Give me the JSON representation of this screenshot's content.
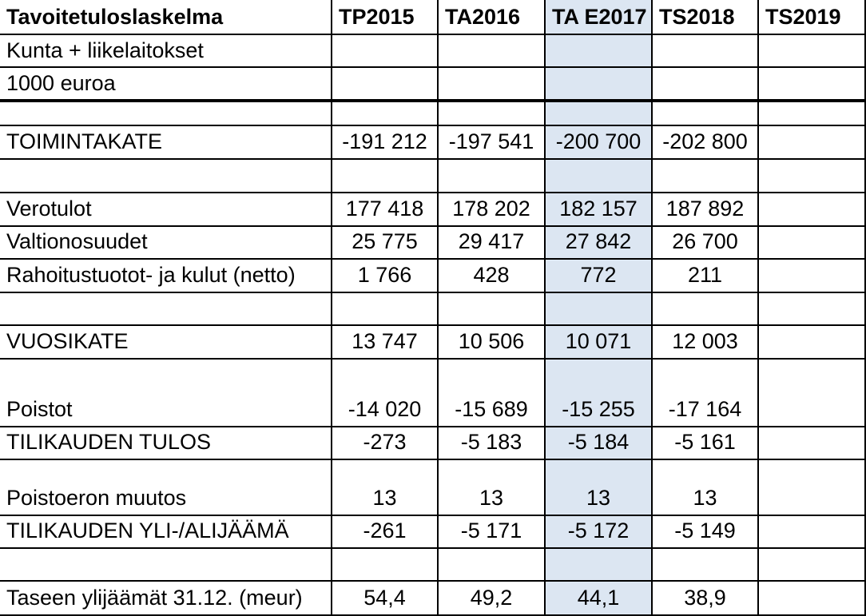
{
  "header": {
    "title": "Tavoitetuloslaskelma",
    "columns": [
      "TP2015",
      "TA2016",
      "TA E2017",
      "TS2018",
      "TS2019"
    ]
  },
  "subheader": {
    "line1": "Kunta + liikelaitokset",
    "line2": "1000 euroa"
  },
  "rows": [
    {
      "label": "",
      "values": [
        "",
        "",
        "",
        "",
        ""
      ]
    },
    {
      "label": "TOIMINTAKATE",
      "values": [
        "-191 212",
        "-197 541",
        "-200 700",
        "-202 800",
        ""
      ]
    },
    {
      "label": "",
      "values": [
        "",
        "",
        "",
        "",
        ""
      ]
    },
    {
      "label": "Verotulot",
      "values": [
        "177 418",
        "178 202",
        "182 157",
        "187 892",
        ""
      ]
    },
    {
      "label": "Valtionosuudet",
      "values": [
        "25 775",
        "29 417",
        "27 842",
        "26 700",
        ""
      ]
    },
    {
      "label": "Rahoitustuotot- ja kulut (netto)",
      "values": [
        "1 766",
        "428",
        "772",
        "211",
        ""
      ]
    },
    {
      "label": "",
      "values": [
        "",
        "",
        "",
        "",
        ""
      ]
    },
    {
      "label": "VUOSIKATE",
      "values": [
        "13 747",
        "10 506",
        "10 071",
        "12 003",
        ""
      ]
    },
    {
      "label": "Poistot",
      "values": [
        "-14 020",
        "-15 689",
        "-15 255",
        "-17 164",
        ""
      ]
    },
    {
      "label": "TILIKAUDEN TULOS",
      "values": [
        "-273",
        "-5 183",
        "-5 184",
        "-5 161",
        ""
      ]
    },
    {
      "label": "Poistoeron muutos",
      "values": [
        "13",
        "13",
        "13",
        "13",
        ""
      ]
    },
    {
      "label": "TILIKAUDEN YLI-/ALIJÄÄMÄ",
      "values": [
        "-261",
        "-5 171",
        "-5 172",
        "-5 149",
        ""
      ]
    },
    {
      "label": "",
      "values": [
        "",
        "",
        "",
        "",
        ""
      ]
    },
    {
      "label": "Taseen ylijäämät 31.12. (meur)",
      "values": [
        "54,4",
        "49,2",
        "44,1",
        "38,9",
        ""
      ]
    }
  ],
  "colors": {
    "highlight_column": "#dce6f2",
    "grid": "#000000"
  }
}
